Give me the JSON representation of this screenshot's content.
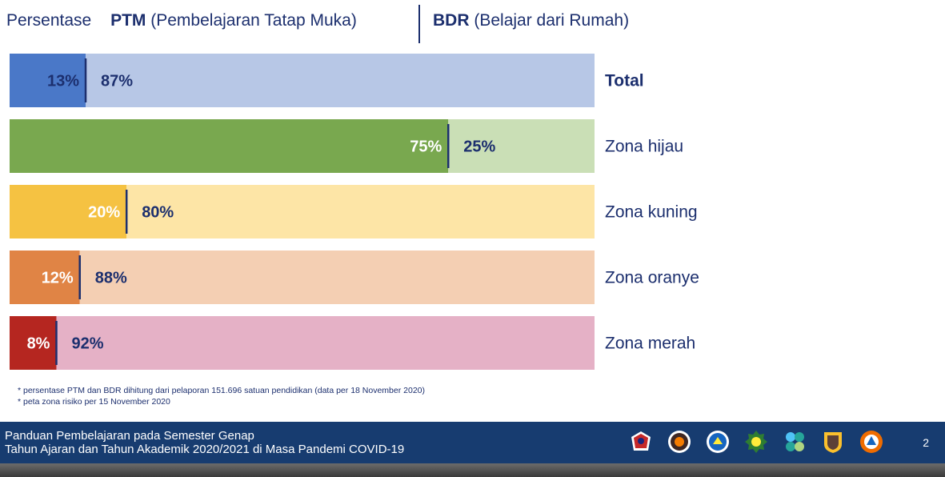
{
  "header": {
    "prefix": "Persentase",
    "ptm_abbr": "PTM",
    "ptm_full": "(Pembelajaran Tatap Muka)",
    "bdr_abbr": "BDR",
    "bdr_full": "(Belajar dari Rumah)"
  },
  "chart_data": {
    "type": "bar",
    "orientation": "horizontal-stacked",
    "xlim": [
      0,
      100
    ],
    "categories": [
      "Total",
      "Zona hijau",
      "Zona kuning",
      "Zona oranye",
      "Zona merah"
    ],
    "series": [
      {
        "values": [
          13,
          75,
          20,
          12,
          8
        ]
      },
      {
        "values": [
          87,
          25,
          80,
          88,
          92
        ]
      }
    ],
    "data_labels": [
      [
        "13%",
        "75%",
        "20%",
        "12%",
        "8%"
      ],
      [
        "87%",
        "25%",
        "80%",
        "88%",
        "92%"
      ]
    ],
    "colors": {
      "ptm": [
        "#4a78c8",
        "#79a84f",
        "#f5c242",
        "#e08445",
        "#b52620"
      ],
      "bdr": [
        "#b7c7e6",
        "#cadfb6",
        "#fde5a6",
        "#f4cfb3",
        "#e5b1c6"
      ],
      "divider": "#1c2f6e",
      "label_dark": "#1c2f6e",
      "label_light": "#ffffff"
    },
    "bold_category": "Total"
  },
  "notes": [
    "* persentase PTM dan BDR dihitung dari pelaporan 151.696 satuan pendidikan (data per 18 November 2020)",
    "* peta zona risiko per 15 November 2020"
  ],
  "footer": {
    "line1": "Panduan Pembelajaran pada Semester Genap",
    "line2": "Tahun Ajaran dan Tahun Akademik  2020/2021 di Masa Pandemi COVID-19",
    "page_number": "2",
    "logos": [
      "satgas-covid-logo",
      "bnpb-logo",
      "kemendikbud-logo",
      "kemenag-logo",
      "kemenkes-logo",
      "kemendagri-logo",
      "bnpb-orange-logo"
    ]
  }
}
